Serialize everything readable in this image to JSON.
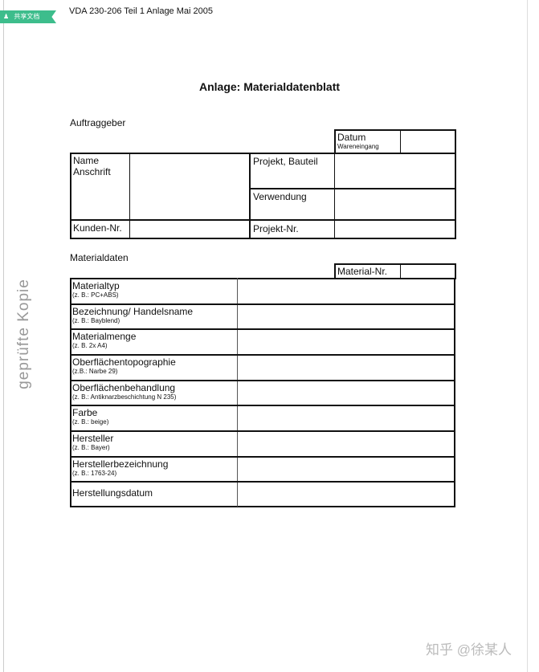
{
  "tag": {
    "icon": "user-icon",
    "label": "共享文档"
  },
  "header": "VDA 230-206 Teil 1 Anlage Mai 2005",
  "title": "Anlage: Materialdatenblatt",
  "auftraggeber": {
    "section": "Auftraggeber",
    "datum": "Datum",
    "datum_sub": "Wareneingang",
    "name": "Name",
    "anschrift": "Anschrift",
    "projekt_bauteil": "Projekt, Bauteil",
    "verwendung": "Verwendung",
    "kunden_nr": "Kunden-Nr.",
    "projekt_nr": "Projekt-Nr."
  },
  "materialdaten": {
    "section": "Materialdaten",
    "material_nr": "Material-Nr.",
    "rows": [
      {
        "label": "Materialtyp",
        "hint": "(z. B.: PC+ABS)"
      },
      {
        "label": "Bezeichnung/ Handelsname",
        "hint": "(z. B.: Bayblend)"
      },
      {
        "label": "Materialmenge",
        "hint": "(z. B. 2x A4)"
      },
      {
        "label": "Oberflächentopographie",
        "hint": "(z.B.: Narbe 29)"
      },
      {
        "label": "Oberflächenbehandlung",
        "hint": "(z. B.: Antiknarzbeschichtung N 235)"
      },
      {
        "label": "Farbe",
        "hint": "(z. B.: beige)"
      },
      {
        "label": "Hersteller",
        "hint": "(z. B.: Bayer)"
      },
      {
        "label": "Herstellerbezeichnung",
        "hint": "(z. B.: 1763-24)"
      },
      {
        "label": "Herstellungsdatum",
        "hint": ""
      }
    ]
  },
  "stamp": "geprüfte Kopie",
  "watermark": "知乎 @徐某人"
}
